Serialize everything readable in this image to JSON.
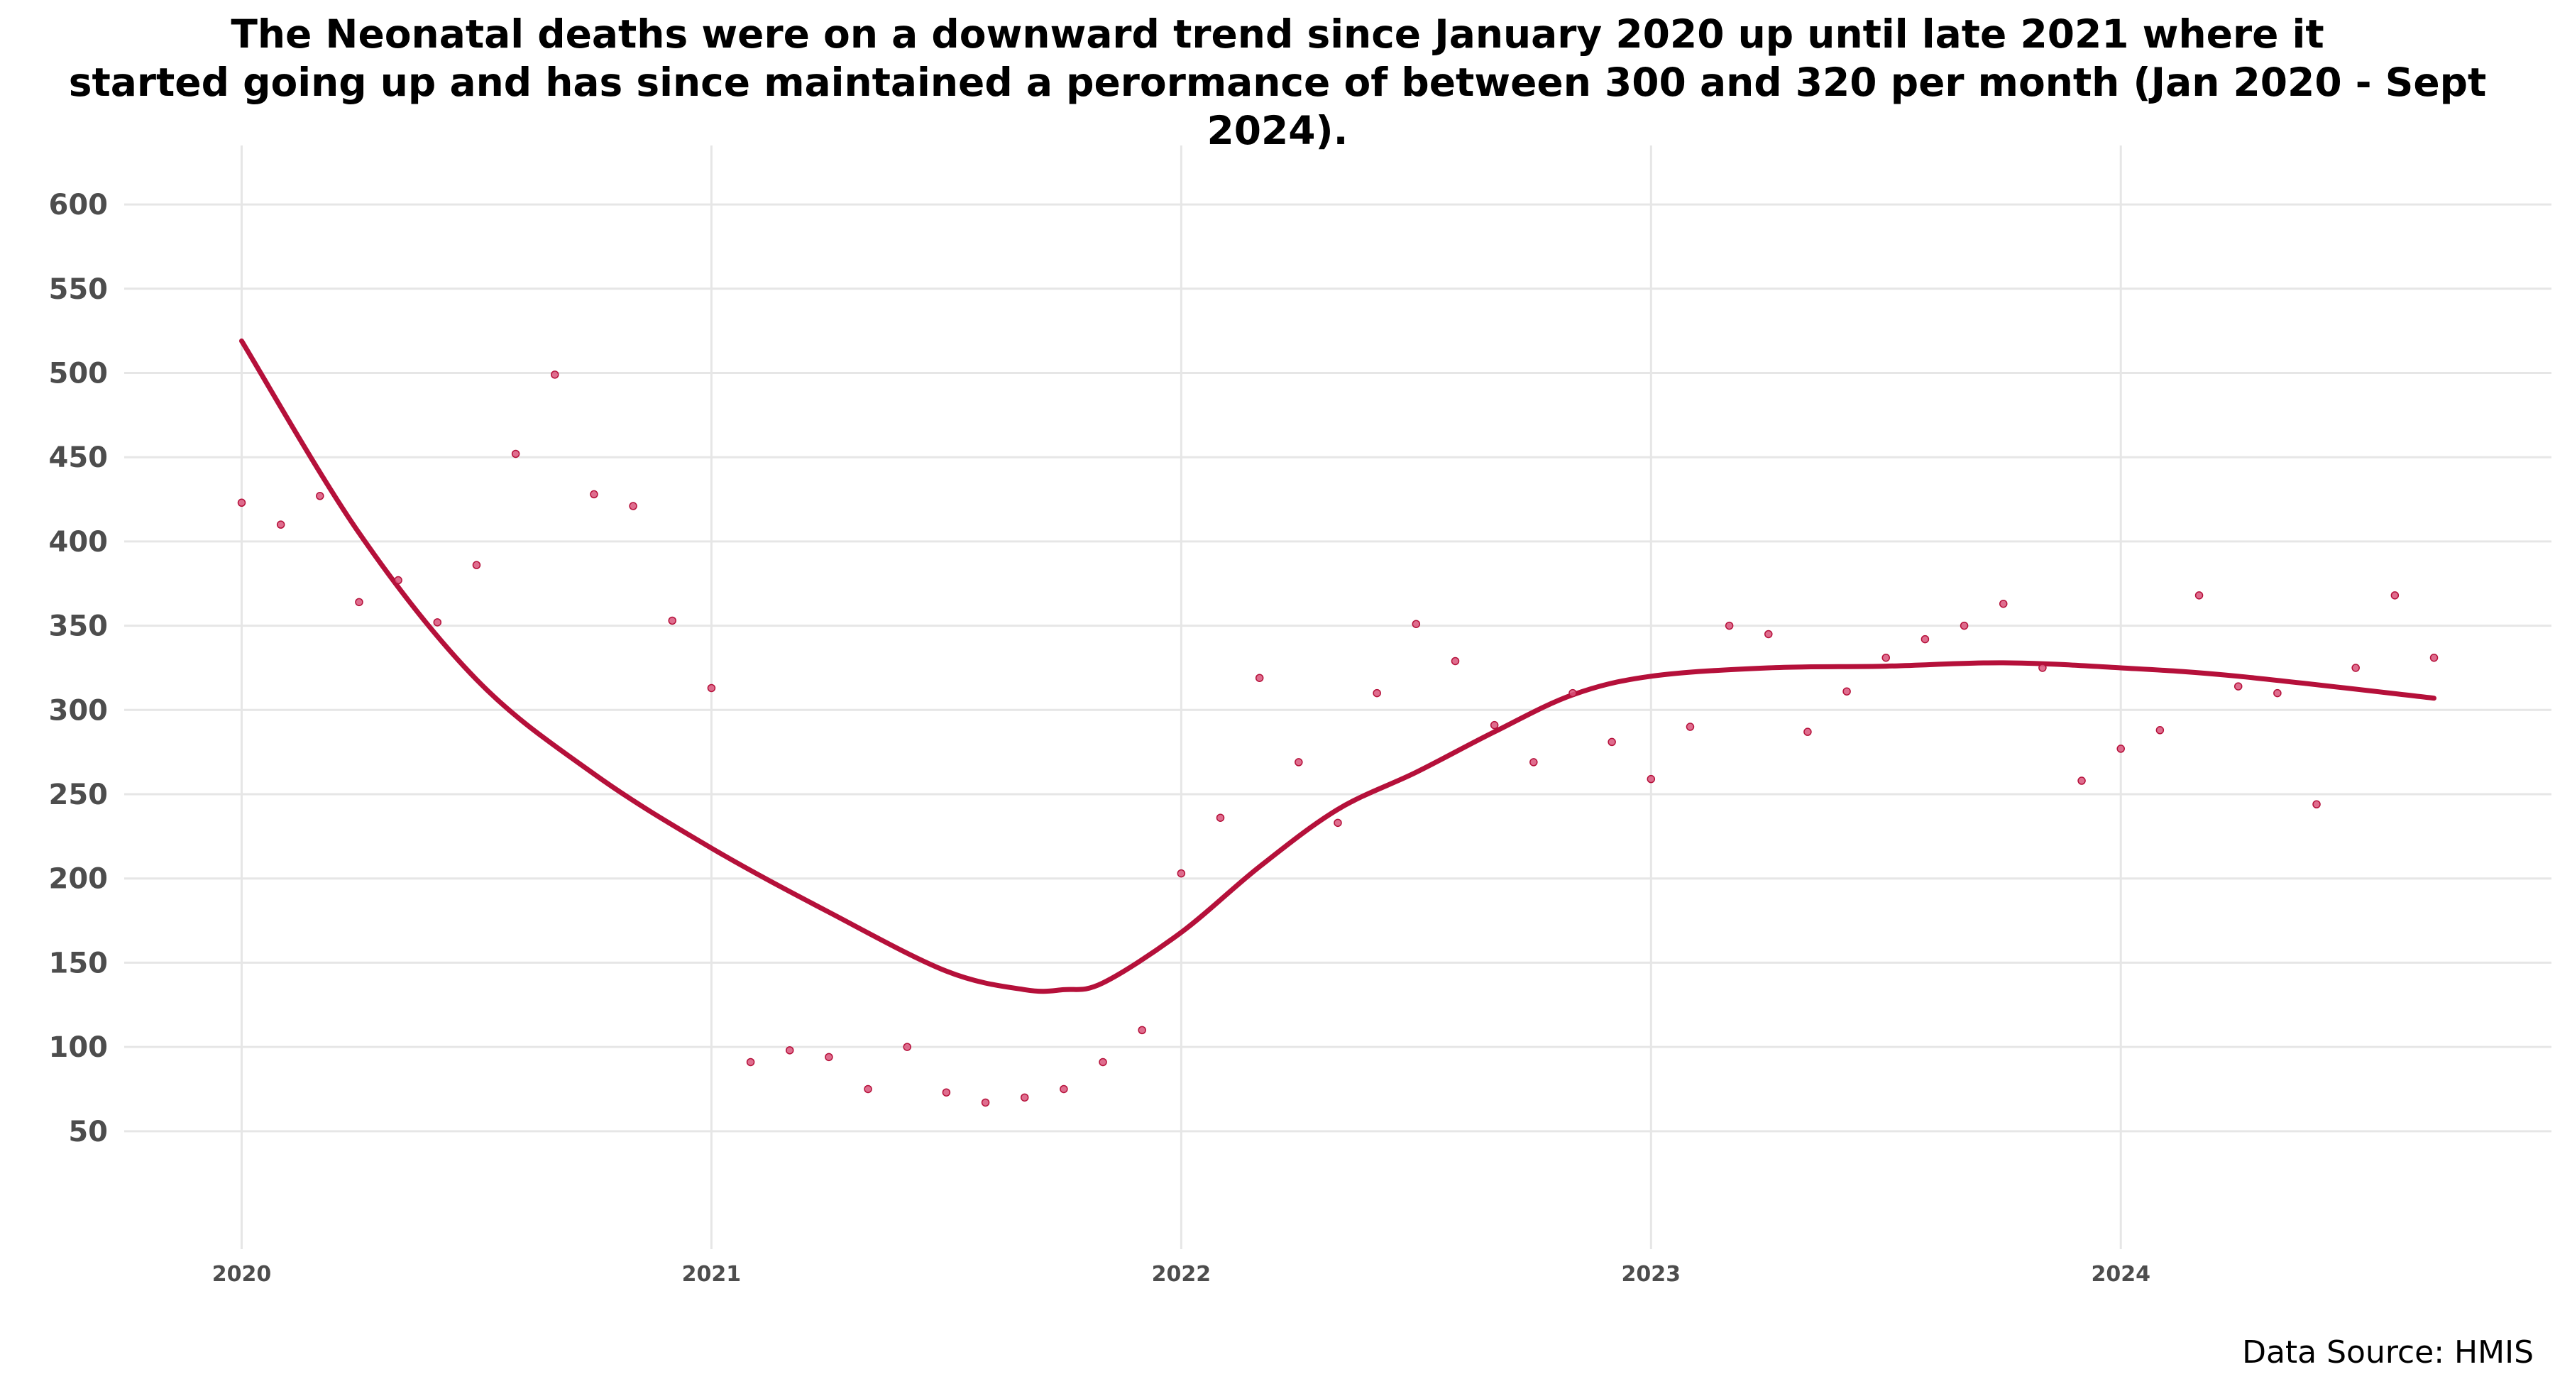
{
  "chart_data": {
    "type": "scatter",
    "title_lines": [
      "The Neonatal deaths were on a downward trend since January 2020 up until late 2021 where it",
      "started going up and has since maintained a perormance of between 300 and 320 per month (Jan 2020 - Sept 2024)."
    ],
    "source": "Data Source: HMIS",
    "x_ticks": [
      "2020",
      "2021",
      "2022",
      "2023",
      "2024"
    ],
    "y_ticks": [
      50,
      100,
      150,
      200,
      250,
      300,
      350,
      400,
      450,
      500,
      550,
      600
    ],
    "xlim": [
      "2019-10",
      "2024-12"
    ],
    "ylim": [
      -20,
      635
    ],
    "grid": true,
    "colors": {
      "points": "#d9537a",
      "trend": "#b5103a",
      "grid": "#e6e6e6"
    },
    "series": [
      {
        "kind": "points",
        "x": [
          "2020-01",
          "2020-02",
          "2020-03",
          "2020-04",
          "2020-05",
          "2020-06",
          "2020-07",
          "2020-08",
          "2020-09",
          "2020-10",
          "2020-11",
          "2020-12",
          "2021-01",
          "2021-02",
          "2021-03",
          "2021-04",
          "2021-05",
          "2021-06",
          "2021-07",
          "2021-08",
          "2021-09",
          "2021-10",
          "2021-11",
          "2021-12",
          "2022-01",
          "2022-02",
          "2022-03",
          "2022-04",
          "2022-05",
          "2022-06",
          "2022-07",
          "2022-08",
          "2022-09",
          "2022-10",
          "2022-11",
          "2022-12",
          "2023-01",
          "2023-02",
          "2023-03",
          "2023-04",
          "2023-05",
          "2023-06",
          "2023-07",
          "2023-08",
          "2023-09",
          "2023-10",
          "2023-11",
          "2023-12",
          "2024-01",
          "2024-02",
          "2024-03",
          "2024-04",
          "2024-05",
          "2024-06",
          "2024-07",
          "2024-08",
          "2024-09"
        ],
        "values": [
          423,
          410,
          427,
          364,
          377,
          352,
          386,
          452,
          499,
          428,
          421,
          353,
          313,
          91,
          98,
          94,
          75,
          100,
          73,
          67,
          70,
          75,
          91,
          110,
          203,
          236,
          319,
          269,
          233,
          310,
          351,
          329,
          291,
          269,
          310,
          281,
          259,
          290,
          350,
          345,
          287,
          311,
          331,
          342,
          350,
          363,
          325,
          258,
          277,
          288,
          368,
          314,
          310,
          244,
          325,
          368,
          331
        ]
      },
      {
        "kind": "trend",
        "x": [
          "2020-01",
          "2020-04",
          "2020-07",
          "2020-10",
          "2021-01",
          "2021-04",
          "2021-07",
          "2021-09",
          "2021-10",
          "2021-11",
          "2022-01",
          "2022-03",
          "2022-05",
          "2022-07",
          "2022-09",
          "2022-11",
          "2023-01",
          "2023-04",
          "2023-07",
          "2023-10",
          "2024-01",
          "2024-04",
          "2024-09"
        ],
        "values": [
          519,
          405,
          318,
          262,
          218,
          180,
          145,
          134,
          134,
          138,
          168,
          207,
          241,
          263,
          287,
          309,
          320,
          325,
          326,
          328,
          325,
          320,
          307
        ]
      }
    ]
  }
}
